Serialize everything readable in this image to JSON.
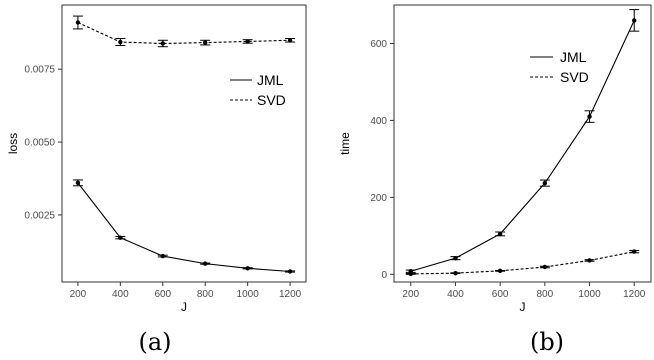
{
  "chart_data": [
    {
      "type": "line",
      "panel": "(a)",
      "xlabel": "J",
      "ylabel": "loss",
      "x": [
        200,
        400,
        600,
        800,
        1000,
        1200
      ],
      "xticks": [
        "200",
        "400",
        "600",
        "800",
        "1000",
        "1200"
      ],
      "yticks": [
        "0.0025",
        "0.0050",
        "0.0075"
      ],
      "xlim": [
        125,
        1275
      ],
      "ylim": [
        0.0002,
        0.0097
      ],
      "ytick_values": [
        0.0025,
        0.005,
        0.0075
      ],
      "grid": false,
      "legend": "center-right",
      "series": [
        {
          "name": "JML",
          "style": "solid",
          "values": [
            0.0036,
            0.00172,
            0.00109,
            0.00083,
            0.00067,
            0.00056
          ],
          "errors": [
            0.0001,
            4e-05,
            3e-05,
            2e-05,
            2e-05,
            2e-05
          ]
        },
        {
          "name": "SVD",
          "style": "dashed",
          "values": [
            0.0091,
            0.00843,
            0.00838,
            0.00841,
            0.00845,
            0.00849
          ],
          "errors": [
            0.00022,
            0.00012,
            0.00011,
            8e-05,
            6e-05,
            6e-05
          ]
        }
      ]
    },
    {
      "type": "line",
      "panel": "(b)",
      "xlabel": "J",
      "ylabel": "time",
      "x": [
        200,
        400,
        600,
        800,
        1000,
        1200
      ],
      "xticks": [
        "200",
        "400",
        "600",
        "800",
        "1000",
        "1200"
      ],
      "yticks": [
        "0",
        "200",
        "400",
        "600"
      ],
      "xlim": [
        125,
        1275
      ],
      "ylim": [
        -20,
        700
      ],
      "ytick_values": [
        0,
        200,
        400,
        600
      ],
      "grid": false,
      "legend": "top-left",
      "series": [
        {
          "name": "JML",
          "style": "solid",
          "values": [
            8,
            42,
            105,
            237,
            410,
            660
          ],
          "errors": [
            3,
            4,
            5,
            8,
            15,
            28
          ]
        },
        {
          "name": "SVD",
          "style": "dashed",
          "values": [
            1,
            3,
            9,
            19,
            36,
            59
          ],
          "errors": [
            1,
            1,
            1,
            2,
            2,
            3
          ]
        }
      ]
    }
  ]
}
